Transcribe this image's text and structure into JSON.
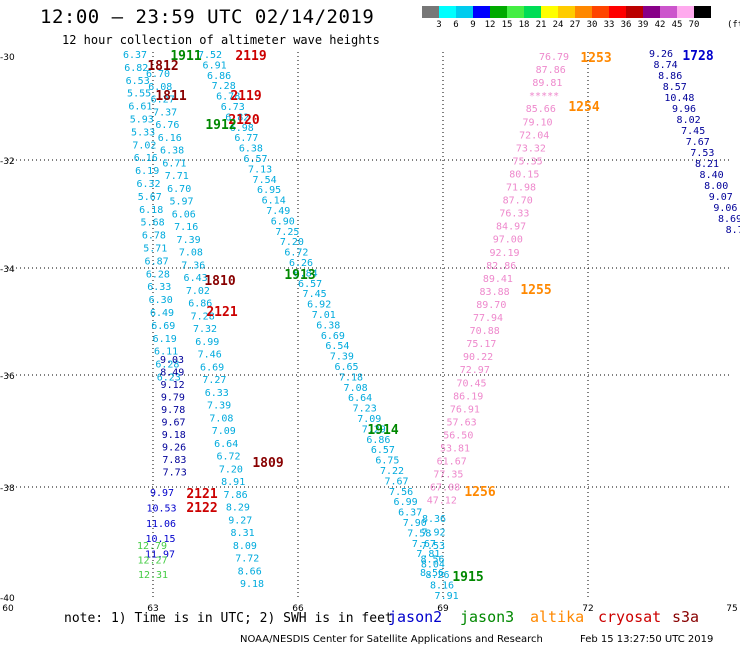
{
  "title": "12:00 – 23:59 UTC 02/14/2019",
  "subtitle": "12 hour collection of altimeter wave heights",
  "legend": {
    "units": "(ft)",
    "colors": [
      "#777777",
      "#00ffff",
      "#00ccee",
      "#0000ff",
      "#00aa00",
      "#44ee44",
      "#00dd55",
      "#ffff00",
      "#ffcc00",
      "#ff8800",
      "#ff4400",
      "#ff0000",
      "#bb0000",
      "#880088",
      "#cc55cc",
      "#ffaaee",
      "#000000"
    ],
    "labels": [
      "3",
      "6",
      "9",
      "12",
      "15",
      "18",
      "21",
      "24",
      "27",
      "30",
      "33",
      "36",
      "39",
      "42",
      "45",
      "70"
    ]
  },
  "axes": {
    "lat_labels": [
      "-30",
      "-32",
      "-34",
      "-36",
      "-38",
      "-40"
    ],
    "lon_labels": [
      "60",
      "63",
      "66",
      "69",
      "72",
      "75"
    ]
  },
  "colors": {
    "jason2": "#0000cc",
    "jason3": "#008800",
    "altika": "#ff8800",
    "cryosat": "#cc0000",
    "s3a": "#880000",
    "dark_cyan": "#0077cc",
    "cyan": "#00aadd",
    "green": "#44cc44",
    "pink": "#ee88cc",
    "navy": "#000099"
  },
  "time_labels": [
    {
      "text": "1911",
      "color": "#008800"
    },
    {
      "text": "1812",
      "color": "#880000"
    },
    {
      "text": "2119",
      "color": "#cc0000"
    },
    {
      "text": "1811",
      "color": "#880000"
    },
    {
      "text": "2119",
      "color": "#cc0000"
    },
    {
      "text": "2120",
      "color": "#cc0000"
    },
    {
      "text": "1912",
      "color": "#008800"
    },
    {
      "text": "1913",
      "color": "#008800"
    },
    {
      "text": "1810",
      "color": "#880000"
    },
    {
      "text": "2121",
      "color": "#cc0000"
    },
    {
      "text": "1914",
      "color": "#008800"
    },
    {
      "text": "1809",
      "color": "#880000"
    },
    {
      "text": "2121",
      "color": "#cc0000"
    },
    {
      "text": "2122",
      "color": "#cc0000"
    },
    {
      "text": "1915",
      "color": "#008800"
    },
    {
      "text": "1253",
      "color": "#ff8800"
    },
    {
      "text": "1254",
      "color": "#ff8800"
    },
    {
      "text": "1255",
      "color": "#ff8800"
    },
    {
      "text": "1256",
      "color": "#ff8800"
    },
    {
      "text": "1728",
      "color": "#0000cc"
    }
  ],
  "tracks": [
    {
      "name": "track-a",
      "color": "#00aadd",
      "values": [
        "6.37",
        "6.82",
        "6.53",
        "5.55",
        "6.61",
        "5.93",
        "5.33",
        "7.02",
        "6.16",
        "6.19",
        "6.32",
        "5.67",
        "6.18",
        "5.68",
        "6.78",
        "5.71",
        "6.87",
        "6.28",
        "6.33",
        "6.30",
        "6.49",
        "6.69",
        "6.19",
        "6.11",
        "6.28",
        "6.23"
      ]
    },
    {
      "name": "track-b",
      "color": "#000099",
      "values": [
        "9.03",
        "8.49",
        "9.12",
        "9.79",
        "9.78",
        "9.67",
        "9.18",
        "9.26",
        "7.83",
        "7.73"
      ]
    },
    {
      "name": "track-c",
      "color": "#00aadd",
      "values": [
        "7.52",
        "6.91",
        "6.86",
        "7.28",
        "6.78",
        "6.73",
        "6.82",
        "6.98",
        "6.77",
        "6.38",
        "6.57",
        "7.13",
        "7.54",
        "6.95",
        "6.14",
        "7.49",
        "6.90",
        "7.25",
        "7.20",
        "6.72",
        "6.26",
        "6.84",
        "6.57",
        "7.45",
        "6.92",
        "7.01",
        "6.38",
        "6.69",
        "6.54",
        "7.39",
        "6.65",
        "7.18",
        "7.08",
        "6.64",
        "7.23",
        "7.09",
        "7.29",
        "6.86",
        "6.57",
        "6.75",
        "7.22",
        "7.67",
        "7.56",
        "6.99",
        "6.37",
        "7.90",
        "7.58",
        "7.67",
        "7.81",
        "8.04",
        "8.26",
        "8.16",
        "7.91"
      ]
    },
    {
      "name": "track-d",
      "color": "#00aadd",
      "values": [
        "6.70",
        "6.08",
        "6.27",
        "7.37",
        "6.76",
        "6.16",
        "6.38",
        "6.71",
        "7.71",
        "6.70",
        "5.97",
        "6.06",
        "7.16",
        "7.39",
        "7.08",
        "7.36",
        "6.43",
        "7.02",
        "6.86",
        "7.28",
        "7.32",
        "6.99",
        "7.46",
        "6.69",
        "7.27",
        "6.33",
        "7.39",
        "7.08",
        "7.09",
        "6.64",
        "6.72",
        "7.20",
        "8.91",
        "7.86",
        "8.29",
        "9.27",
        "8.31",
        "8.09",
        "7.72",
        "8.66",
        "9.18"
      ]
    },
    {
      "name": "track-e",
      "color": "#0000cc",
      "values": [
        "9.97",
        "10.53",
        "11.06",
        "10.15",
        "11.97"
      ]
    },
    {
      "name": "track-f",
      "color": "#44cc44",
      "values": [
        "12.79",
        "12.27",
        "12.31"
      ]
    },
    {
      "name": "track-g",
      "color": "#ee88cc",
      "values": [
        "76.79",
        "87.86",
        "89.81",
        "*****",
        "85.66",
        "79.10",
        "72.04",
        "73.32",
        "75.35",
        "80.15",
        "71.98",
        "87.70",
        "76.33",
        "84.97",
        "97.00",
        "92.19",
        "82.86",
        "89.41",
        "83.88",
        "89.70",
        "77.94",
        "70.88",
        "75.17",
        "90.22",
        "72.97",
        "70.45",
        "86.19",
        "76.91",
        "57.63",
        "56.50",
        "53.81",
        "61.67",
        "77.35",
        "67.08",
        "47.12"
      ]
    },
    {
      "name": "track-h",
      "color": "#00aadd",
      "values": [
        "8.36",
        "7.92",
        "7.53",
        "8.56",
        "8.56"
      ]
    },
    {
      "name": "track-i",
      "color": "#000099",
      "values": [
        "9.26",
        "8.74",
        "8.86",
        "8.57",
        "10.48",
        "9.96",
        "8.02",
        "7.45",
        "7.67",
        "7.53",
        "8.21",
        "8.40",
        "8.00",
        "9.07",
        "9.06",
        "8.69",
        "8.7"
      ]
    }
  ],
  "note": "note:  1) Time is in UTC;  2) SWH is in feet",
  "satellites": [
    {
      "name": "jason2",
      "color": "#0000cc"
    },
    {
      "name": "jason3",
      "color": "#008800"
    },
    {
      "name": "altika",
      "color": "#ff8800"
    },
    {
      "name": "cryosat",
      "color": "#cc0000"
    },
    {
      "name": "s3a",
      "color": "#880000"
    }
  ],
  "credit": "NOAA/NESDIS Center for Satellite Applications and Research",
  "timestamp": "Feb 15 13:27:50 UTC 2019"
}
